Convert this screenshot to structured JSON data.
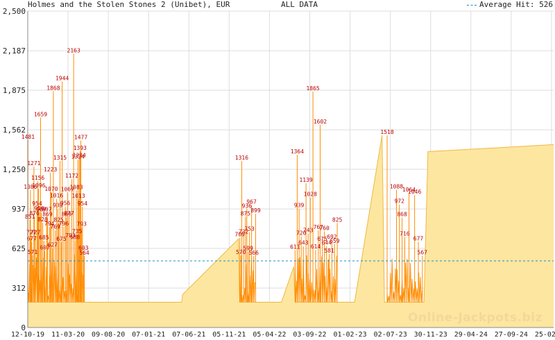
{
  "header": {
    "title": "Holmes and the Stolen Stones 2 (Unibet), EUR",
    "range_label": "ALL DATA",
    "legend_label": "Average Hit: 526"
  },
  "watermark": "Online-Jackpots.biz",
  "chart_data": {
    "type": "area",
    "title": "Holmes and the Stolen Stones 2 (Unibet), EUR",
    "ylim": [
      0,
      2500
    ],
    "y_ticks": [
      0,
      312,
      625,
      937,
      1250,
      1562,
      1875,
      2187,
      2500
    ],
    "y_tick_labels": [
      "0",
      "312",
      "625",
      "937",
      "1,250",
      "1,562",
      "1,875",
      "2,187",
      "2,500"
    ],
    "x_ticks": [
      "12-10-19",
      "11-03-20",
      "09-08-20",
      "07-01-21",
      "07-06-21",
      "05-11-21",
      "05-04-22",
      "03-09-22",
      "01-02-23",
      "02-07-23",
      "30-11-23",
      "29-04-24",
      "27-09-24",
      "25-02-25"
    ],
    "average_hit": 526,
    "grid": true,
    "legend": "top-right",
    "colors": {
      "hits": "#ff8c00",
      "area_fill": "#fde6a0",
      "area_line": "#f0b840",
      "labels": "#bb0000",
      "average": "#1a8fbf",
      "grid": "#dddddd",
      "axis": "#888888"
    },
    "labeled_hits": [
      {
        "x": "13-10-19",
        "y": 1481
      },
      {
        "x": "20-10-19",
        "y": 851
      },
      {
        "x": "22-10-19",
        "y": 1086
      },
      {
        "x": "25-10-19",
        "y": 727
      },
      {
        "x": "27-10-19",
        "y": 677
      },
      {
        "x": "30-10-19",
        "y": 571
      },
      {
        "x": "04-11-19",
        "y": 1271
      },
      {
        "x": "06-11-19",
        "y": 876
      },
      {
        "x": "10-11-19",
        "y": 727
      },
      {
        "x": "16-11-19",
        "y": 954
      },
      {
        "x": "19-11-19",
        "y": 1156
      },
      {
        "x": "22-11-19",
        "y": 1096
      },
      {
        "x": "24-11-19",
        "y": 916
      },
      {
        "x": "29-11-19",
        "y": 1659
      },
      {
        "x": "02-12-19",
        "y": 907
      },
      {
        "x": "07-12-19",
        "y": 828
      },
      {
        "x": "12-12-19",
        "y": 685
      },
      {
        "x": "15-12-19",
        "y": 607
      },
      {
        "x": "22-12-19",
        "y": 907
      },
      {
        "x": "25-12-19",
        "y": 869
      },
      {
        "x": "01-01-20",
        "y": 794
      },
      {
        "x": "05-01-20",
        "y": 1223
      },
      {
        "x": "08-01-20",
        "y": 1070
      },
      {
        "x": "13-01-20",
        "y": 627
      },
      {
        "x": "16-01-20",
        "y": 1868
      },
      {
        "x": "23-01-20",
        "y": 769
      },
      {
        "x": "28-01-20",
        "y": 1016
      },
      {
        "x": "02-02-20",
        "y": 939
      },
      {
        "x": "05-02-20",
        "y": 825
      },
      {
        "x": "10-02-20",
        "y": 1315
      },
      {
        "x": "15-02-20",
        "y": 675
      },
      {
        "x": "18-02-20",
        "y": 1944
      },
      {
        "x": "24-02-20",
        "y": 796
      },
      {
        "x": "01-03-20",
        "y": 956
      },
      {
        "x": "05-03-20",
        "y": 869
      },
      {
        "x": "09-03-20",
        "y": 1067
      },
      {
        "x": "15-03-20",
        "y": 877
      },
      {
        "x": "20-03-20",
        "y": 703
      },
      {
        "x": "25-03-20",
        "y": 1172
      },
      {
        "x": "01-04-20",
        "y": 2163
      },
      {
        "x": "06-04-20",
        "y": 688
      },
      {
        "x": "11-04-20",
        "y": 1083
      },
      {
        "x": "14-04-20",
        "y": 735
      },
      {
        "x": "17-04-20",
        "y": 1324
      },
      {
        "x": "19-04-20",
        "y": 1013
      },
      {
        "x": "22-04-20",
        "y": 1334
      },
      {
        "x": "25-04-20",
        "y": 1393
      },
      {
        "x": "28-04-20",
        "y": 1477
      },
      {
        "x": "01-05-20",
        "y": 793
      },
      {
        "x": "04-05-20",
        "y": 954
      },
      {
        "x": "08-05-20",
        "y": 603
      },
      {
        "x": "11-05-20",
        "y": 564
      },
      {
        "x": "15-12-21",
        "y": 709
      },
      {
        "x": "19-12-21",
        "y": 570
      },
      {
        "x": "22-12-21",
        "y": 1316
      },
      {
        "x": "29-12-21",
        "y": 732
      },
      {
        "x": "05-01-22",
        "y": 875
      },
      {
        "x": "10-01-22",
        "y": 936
      },
      {
        "x": "15-01-22",
        "y": 599
      },
      {
        "x": "20-01-22",
        "y": 753
      },
      {
        "x": "28-01-22",
        "y": 967
      },
      {
        "x": "05-02-22",
        "y": 566
      },
      {
        "x": "12-02-22",
        "y": 899
      },
      {
        "x": "10-07-22",
        "y": 611
      },
      {
        "x": "18-07-22",
        "y": 1364
      },
      {
        "x": "25-07-22",
        "y": 939
      },
      {
        "x": "02-08-22",
        "y": 720
      },
      {
        "x": "10-08-22",
        "y": 643
      },
      {
        "x": "20-08-22",
        "y": 1139
      },
      {
        "x": "28-08-22",
        "y": 743
      },
      {
        "x": "05-09-22",
        "y": 1028
      },
      {
        "x": "15-09-22",
        "y": 1865
      },
      {
        "x": "25-09-22",
        "y": 614
      },
      {
        "x": "05-10-22",
        "y": 767
      },
      {
        "x": "12-10-22",
        "y": 1602
      },
      {
        "x": "20-10-22",
        "y": 675
      },
      {
        "x": "28-10-22",
        "y": 760
      },
      {
        "x": "05-11-22",
        "y": 644
      },
      {
        "x": "15-11-22",
        "y": 581
      },
      {
        "x": "25-11-22",
        "y": 692
      },
      {
        "x": "05-12-22",
        "y": 659
      },
      {
        "x": "15-12-22",
        "y": 825
      },
      {
        "x": "20-06-23",
        "y": 1518
      },
      {
        "x": "25-07-23",
        "y": 1088
      },
      {
        "x": "05-08-23",
        "y": 972
      },
      {
        "x": "15-08-23",
        "y": 868
      },
      {
        "x": "25-08-23",
        "y": 716
      },
      {
        "x": "10-09-23",
        "y": 1064
      },
      {
        "x": "01-10-23",
        "y": 1046
      },
      {
        "x": "15-10-23",
        "y": 677
      },
      {
        "x": "30-10-23",
        "y": 567
      }
    ],
    "area_points": [
      {
        "x": "12-10-19",
        "y": 200
      },
      {
        "x": "11-05-21",
        "y": 200
      },
      {
        "x": "14-05-21",
        "y": 260
      },
      {
        "x": "10-12-21",
        "y": 700
      },
      {
        "x": "14-12-21",
        "y": 200
      },
      {
        "x": "25-02-22",
        "y": 200
      },
      {
        "x": "20-05-22",
        "y": 200
      },
      {
        "x": "05-07-22",
        "y": 480
      },
      {
        "x": "10-07-22",
        "y": 200
      },
      {
        "x": "10-01-23",
        "y": 200
      },
      {
        "x": "18-02-23",
        "y": 200
      },
      {
        "x": "01-06-23",
        "y": 1518
      },
      {
        "x": "10-06-23",
        "y": 200
      },
      {
        "x": "05-11-23",
        "y": 200
      },
      {
        "x": "20-11-23",
        "y": 1390
      },
      {
        "x": "05-03-25",
        "y": 1445
      }
    ]
  }
}
